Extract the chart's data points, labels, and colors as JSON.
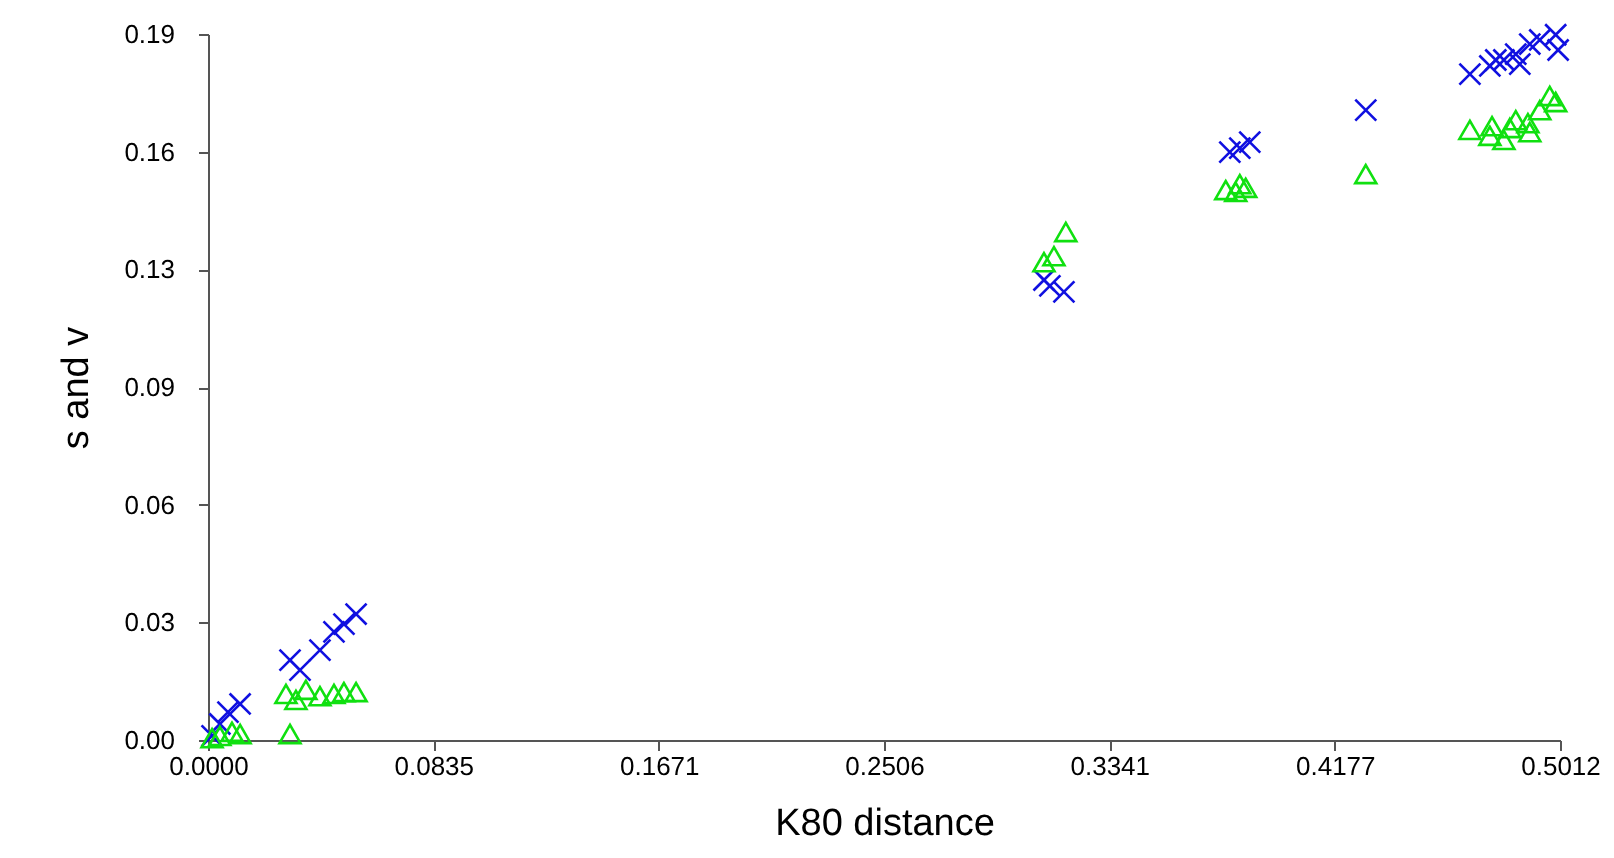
{
  "chart_data": {
    "type": "scatter",
    "xlabel": "K80 distance",
    "ylabel": "s and v",
    "xlim": [
      0.0,
      0.5012
    ],
    "ylim": [
      0.0,
      0.19
    ],
    "xticks": [
      {
        "value": 0.0,
        "label": "0.0000"
      },
      0.0835,
      0.1671,
      0.2506,
      0.3341,
      0.4177,
      0.5012
    ],
    "yticks": [
      {
        "value": 0.0,
        "label": "0.00"
      },
      {
        "value": 0.0317,
        "label": "0.03"
      },
      {
        "value": 0.0633,
        "label": "0.06"
      },
      {
        "value": 0.095,
        "label": "0.09"
      },
      {
        "value": 0.1267,
        "label": "0.13"
      },
      {
        "value": 0.1583,
        "label": "0.16"
      },
      0.19
    ],
    "grid": false,
    "series": [
      {
        "color": "#1010e0",
        "marker": "cross",
        "x": [
          0.0015,
          0.0044,
          0.0074,
          0.0119,
          0.0304,
          0.0341,
          0.0415,
          0.0467,
          0.0504,
          0.0549,
          0.3099,
          0.3121,
          0.3173,
          0.3788,
          0.3825,
          0.3862,
          0.4292,
          0.4678,
          0.4752,
          0.4804,
          0.4848,
          0.49,
          0.4937,
          0.4996,
          0.5005,
          0.4863,
          0.4774
        ],
        "values": [
          0.0011,
          0.0043,
          0.0075,
          0.0097,
          0.0215,
          0.0188,
          0.0242,
          0.0291,
          0.0312,
          0.0339,
          0.1238,
          0.1222,
          0.1206,
          0.1582,
          0.1593,
          0.1609,
          0.1695,
          0.1792,
          0.1814,
          0.183,
          0.1846,
          0.1873,
          0.1884,
          0.1898,
          0.1857,
          0.1819,
          0.183
        ]
      },
      {
        "color": "#10e010",
        "marker": "triangle",
        "x": [
          0.0015,
          0.0044,
          0.0089,
          0.0119,
          0.0289,
          0.0326,
          0.0363,
          0.0415,
          0.0467,
          0.0504,
          0.0549,
          0.0304,
          0.3099,
          0.3136,
          0.318,
          0.3773,
          0.381,
          0.3847,
          0.3825,
          0.4292,
          0.4678,
          0.4752,
          0.4804,
          0.4848,
          0.49,
          0.4937,
          0.4974,
          0.4996,
          0.4826,
          0.476,
          0.4893
        ],
        "values": [
          0.0005,
          0.0011,
          0.0022,
          0.0016,
          0.0124,
          0.0108,
          0.0135,
          0.0118,
          0.0124,
          0.0129,
          0.0129,
          0.0016,
          0.1286,
          0.1302,
          0.1367,
          0.148,
          0.1475,
          0.1486,
          0.1496,
          0.1523,
          0.1642,
          0.1626,
          0.1615,
          0.1668,
          0.1636,
          0.1695,
          0.1733,
          0.1717,
          0.1647,
          0.1652,
          0.166
        ]
      }
    ]
  }
}
